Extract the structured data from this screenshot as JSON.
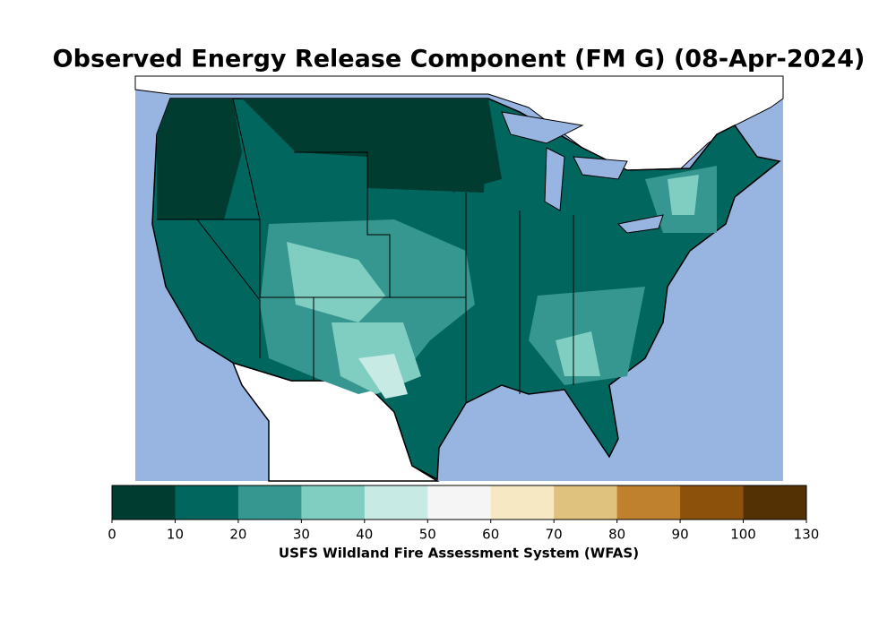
{
  "title": "Observed Energy Release Component (FM G) (08-Apr-2024)",
  "colorbar": {
    "label": "USFS Wildland Fire Assessment System (WFAS)",
    "bins": [
      0,
      10,
      20,
      30,
      40,
      50,
      60,
      70,
      80,
      90,
      100,
      130
    ],
    "colors": [
      "#003c30",
      "#01665e",
      "#35978f",
      "#80cdc1",
      "#c7eae5",
      "#f5f5f5",
      "#f6e8c3",
      "#dfc27d",
      "#bf812d",
      "#8c510a",
      "#543005"
    ]
  }
}
